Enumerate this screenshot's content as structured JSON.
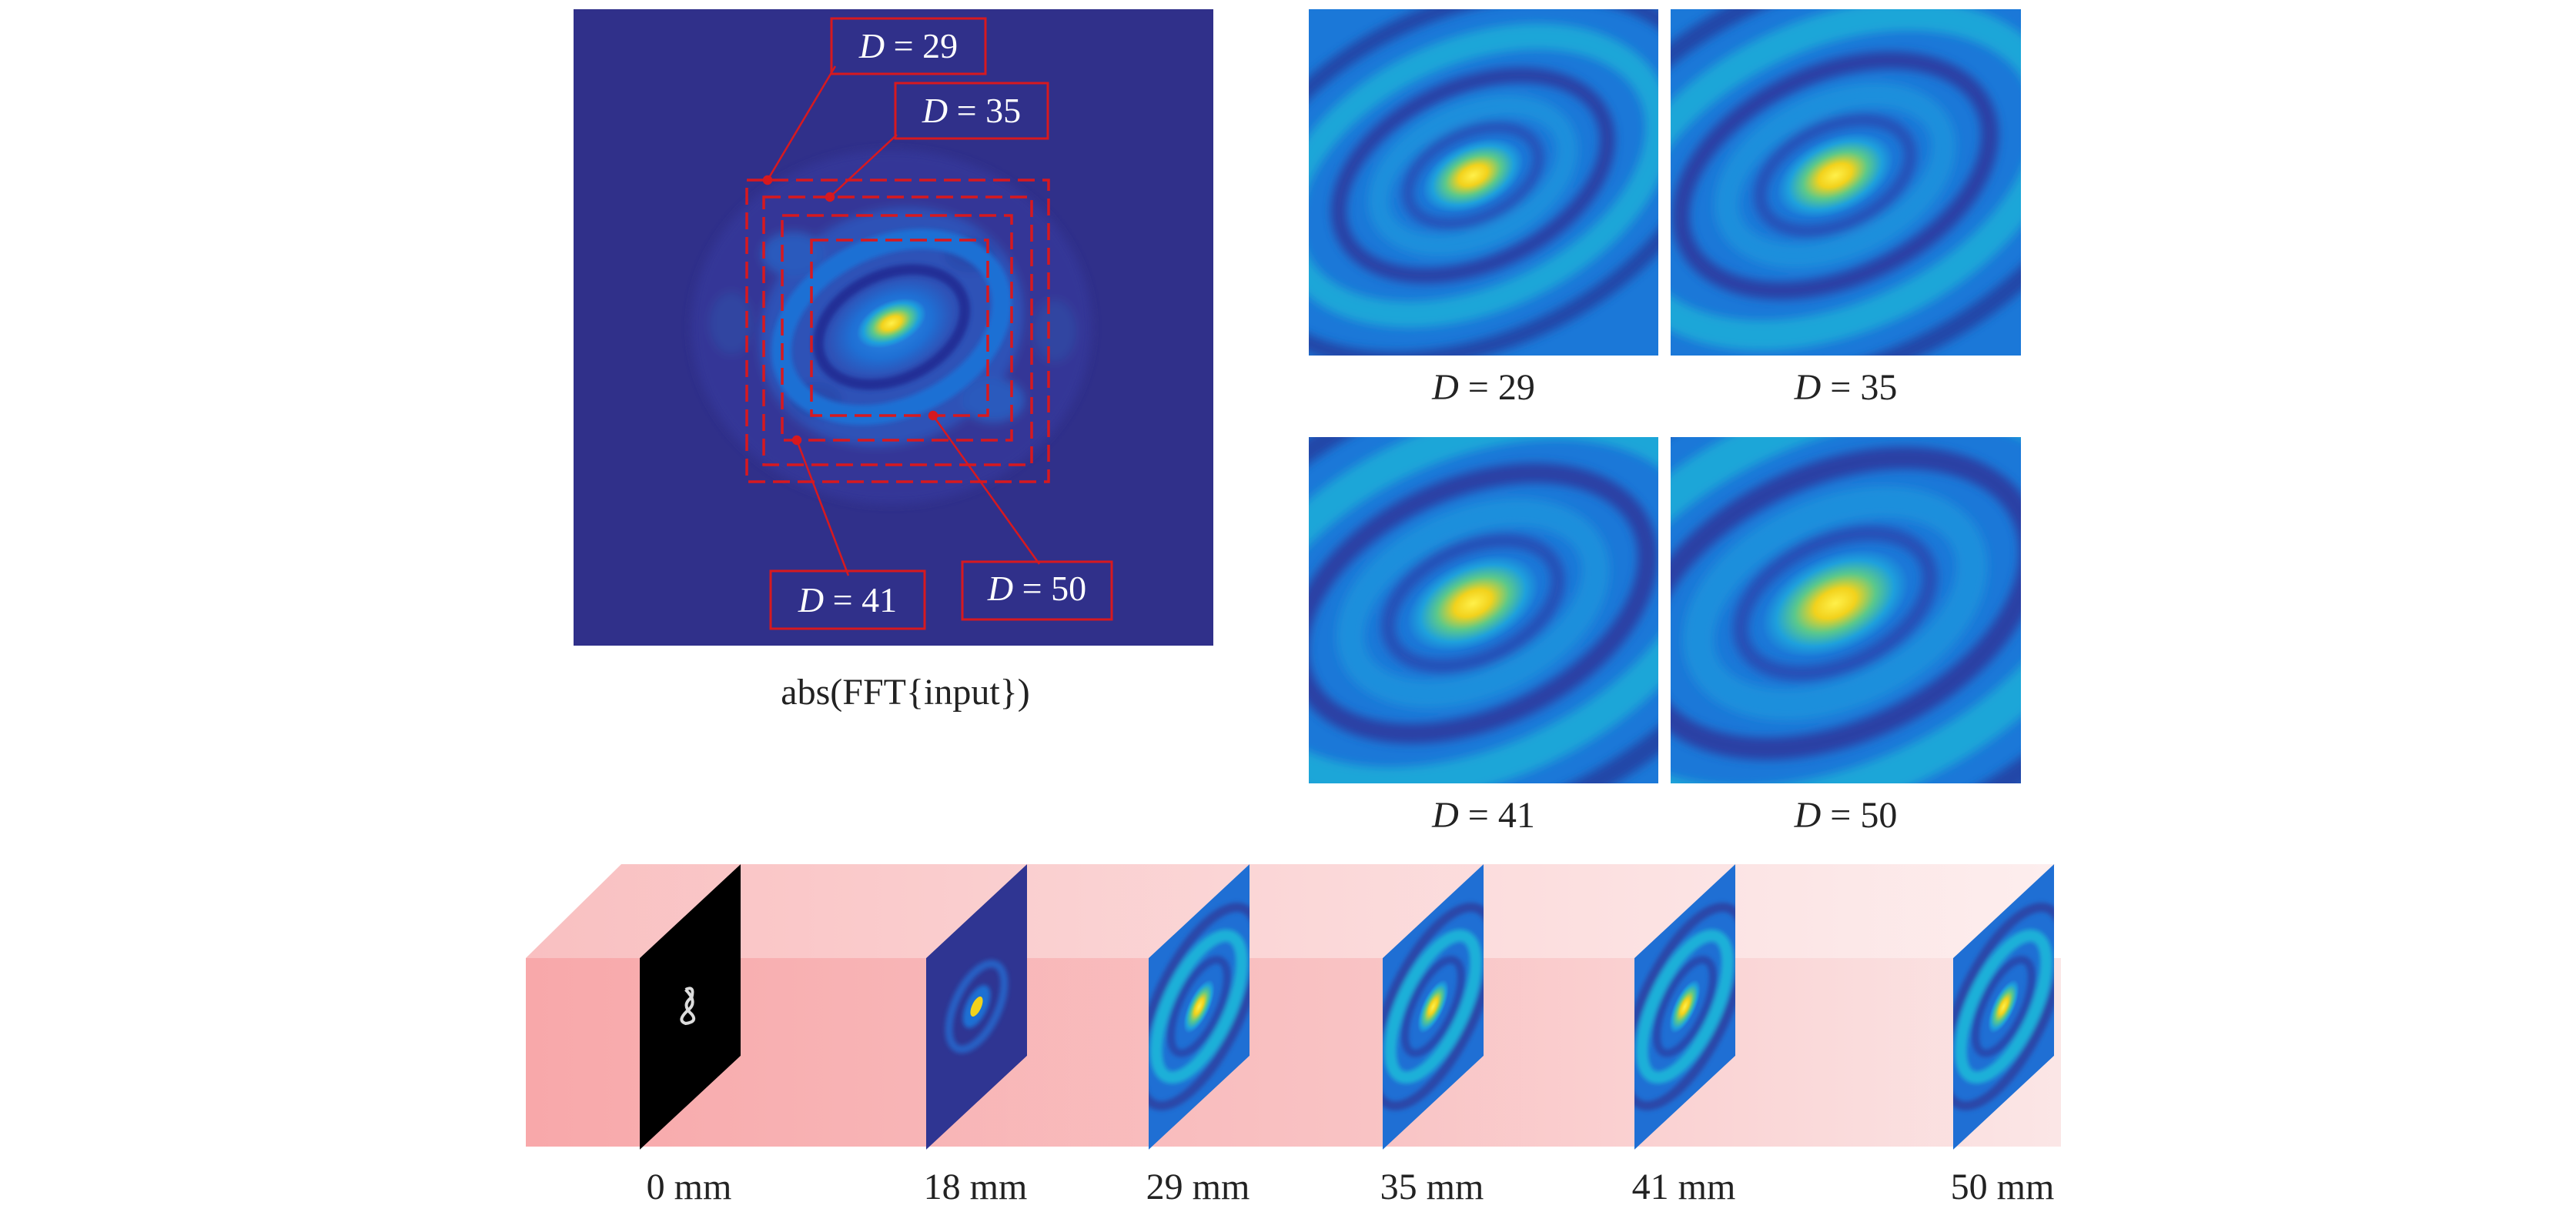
{
  "colors": {
    "field_background": "#30308a",
    "field_mid": "#1f70d0",
    "field_high": "#18c4d0",
    "peak": "#f6e820",
    "annotation_red": "#d7191f",
    "tunnel_light": "#fbe3e3",
    "tunnel_dark": "#f8a7a9",
    "input_plane": "#000000"
  },
  "left_panel": {
    "caption": "abs(FFT{input})",
    "callouts": [
      {
        "text": "D = 29",
        "symbol": "D",
        "value": "29"
      },
      {
        "text": "D = 35",
        "symbol": "D",
        "value": "35"
      },
      {
        "text": "D = 41",
        "symbol": "D",
        "value": "41"
      },
      {
        "text": "D = 50",
        "symbol": "D",
        "value": "50"
      }
    ]
  },
  "crops": [
    {
      "caption": "D = 29",
      "symbol": "D",
      "value": "29"
    },
    {
      "caption": "D = 35",
      "symbol": "D",
      "value": "35"
    },
    {
      "caption": "D = 41",
      "symbol": "D",
      "value": "41"
    },
    {
      "caption": "D = 50",
      "symbol": "D",
      "value": "50"
    }
  ],
  "propagation": {
    "planes": [
      {
        "label": "0 mm",
        "kind": "input"
      },
      {
        "label": "18 mm",
        "kind": "fft"
      },
      {
        "label": "29 mm",
        "kind": "field"
      },
      {
        "label": "35 mm",
        "kind": "field"
      },
      {
        "label": "41 mm",
        "kind": "field"
      },
      {
        "label": "50 mm",
        "kind": "field"
      }
    ]
  }
}
